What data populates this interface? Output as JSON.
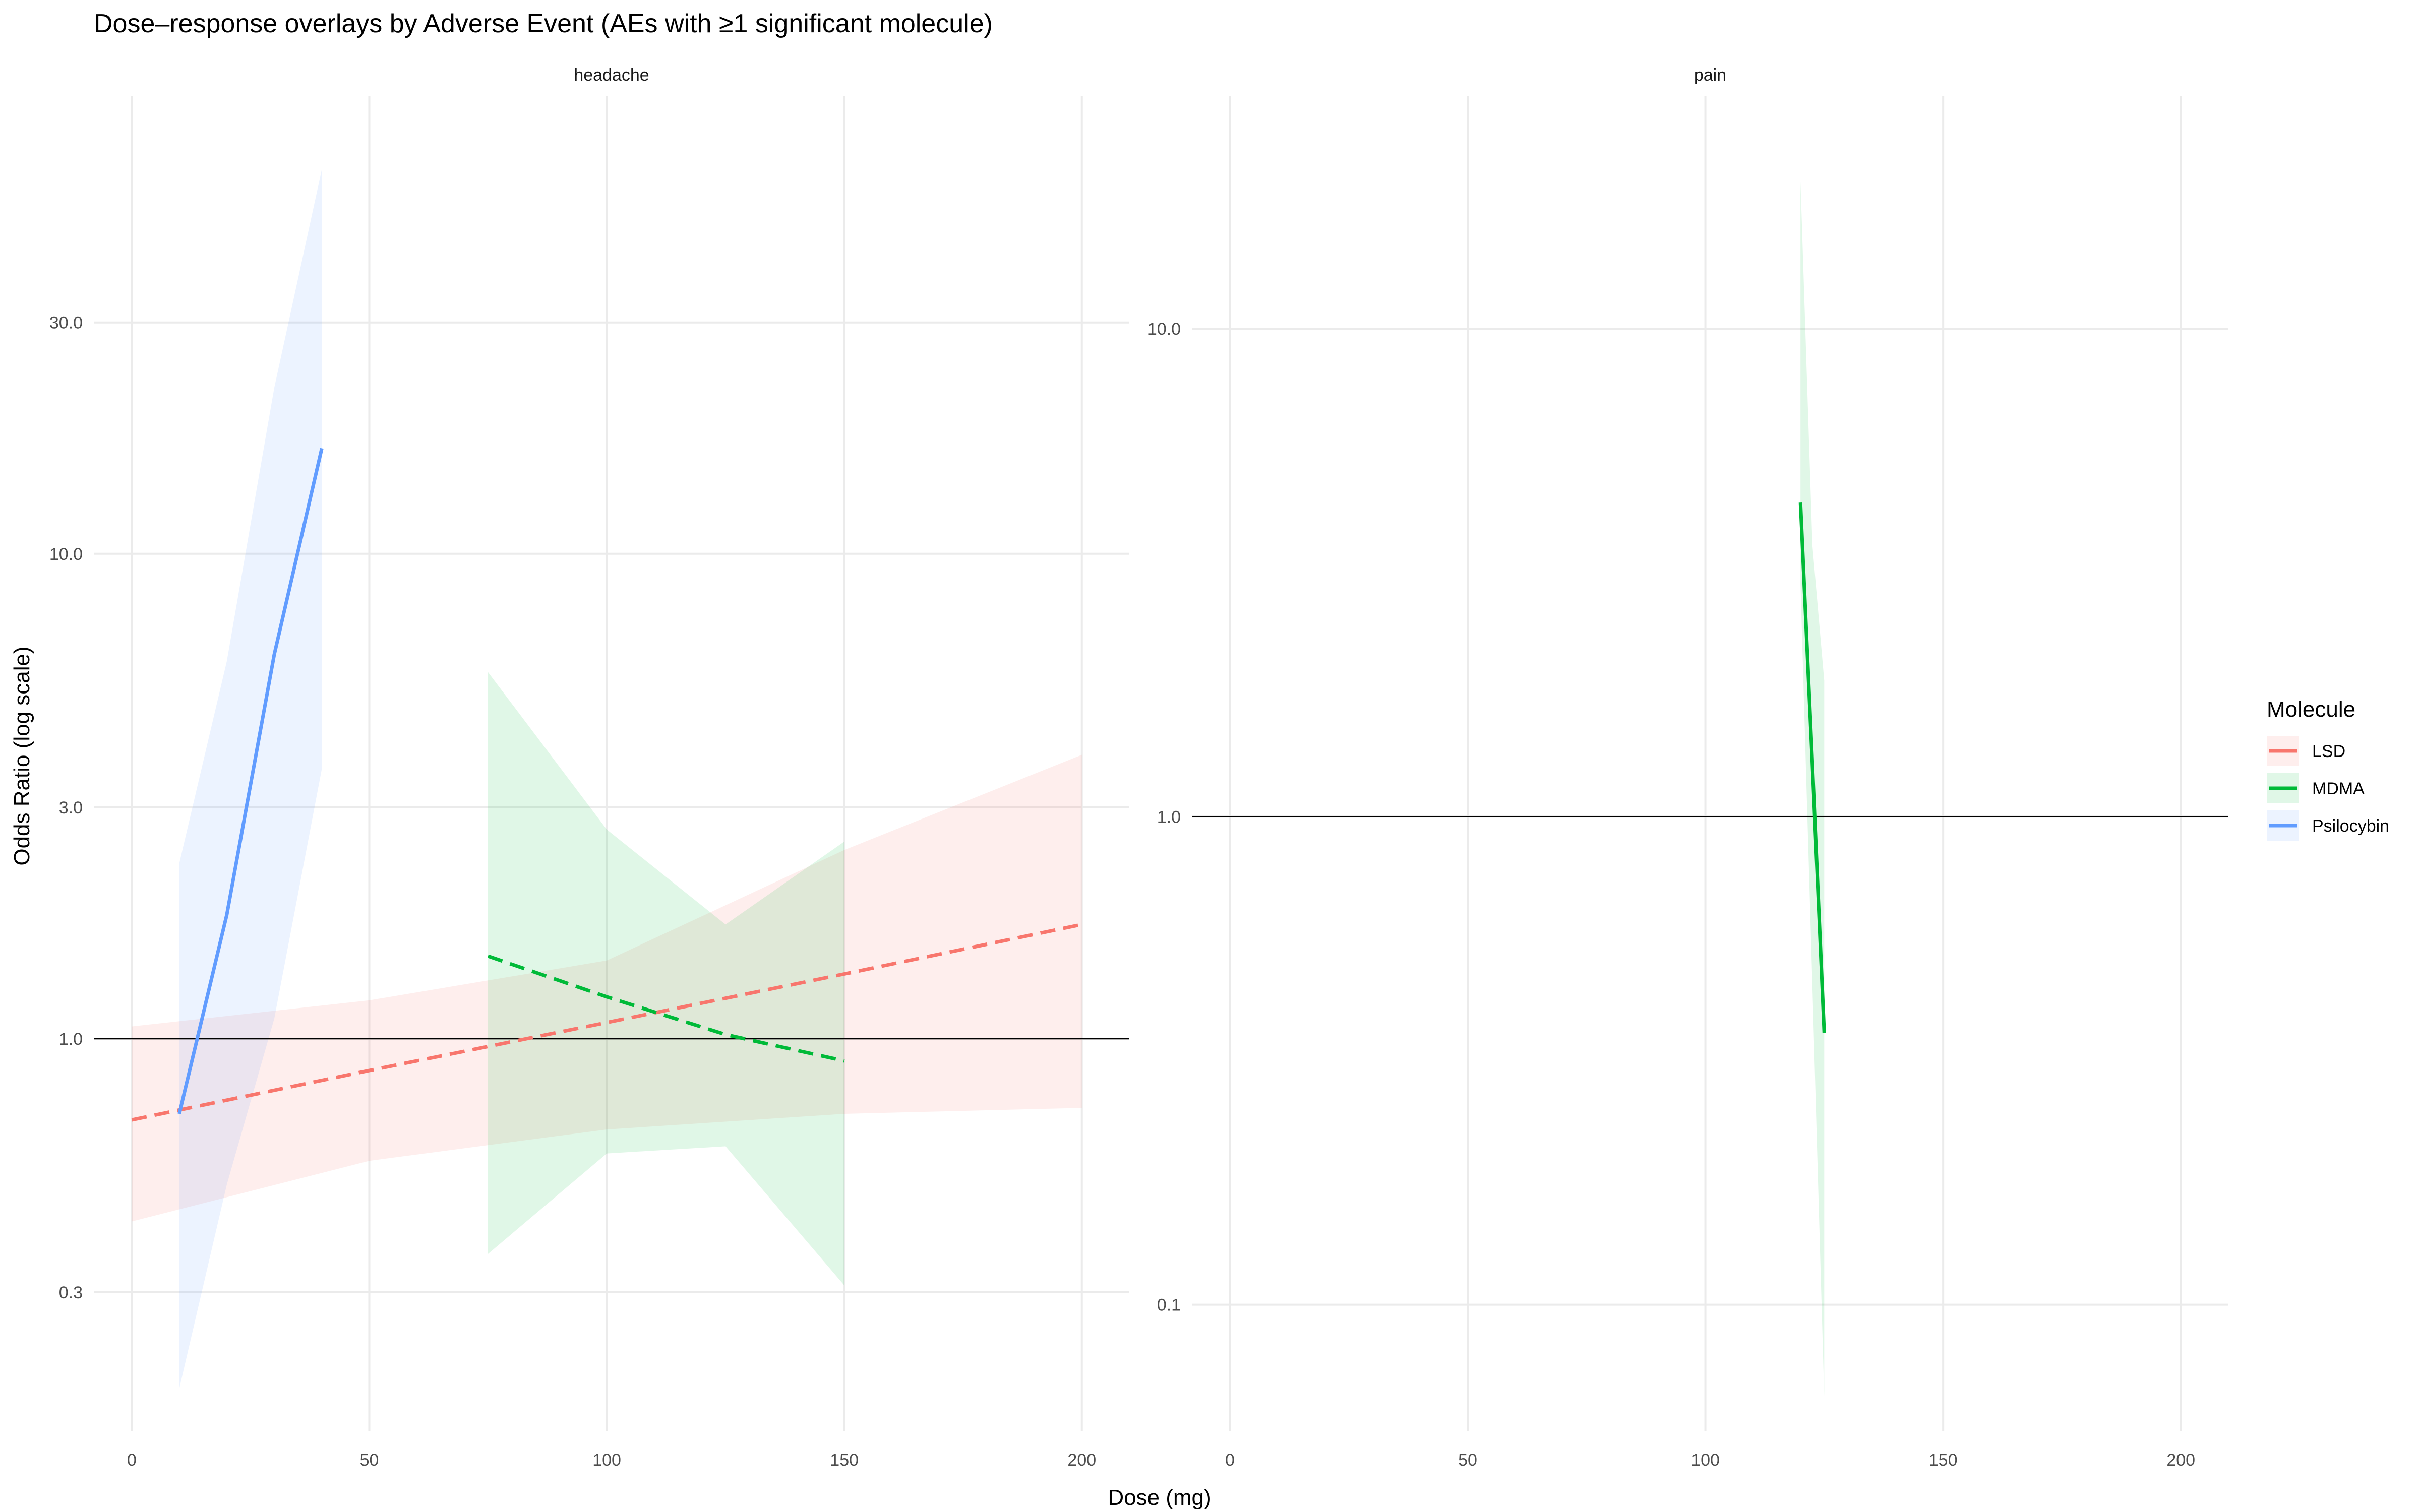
{
  "chart_data": {
    "type": "line",
    "title": "Dose–response overlays by Adverse Event (AEs with ≥1 significant molecule)",
    "xlabel": "Dose (mg)",
    "ylabel": "Odds Ratio (log scale)",
    "y_scale": "log",
    "grid": true,
    "legend": {
      "title": "Molecule",
      "placement": "right",
      "entries": [
        {
          "name": "LSD",
          "color": "#F8766D"
        },
        {
          "name": "MDMA",
          "color": "#00BA38"
        },
        {
          "name": "Psilocybin",
          "color": "#619CFF"
        }
      ]
    },
    "reference_line_y": 1.0,
    "panels": [
      {
        "facet": "headache",
        "xlim": [
          -8,
          210
        ],
        "ylim": [
          0.155,
          88
        ],
        "x_ticks": [
          0,
          50,
          100,
          150,
          200
        ],
        "x_tick_labels": [
          "0",
          "50",
          "100",
          "150",
          "200"
        ],
        "y_ticks": [
          0.3,
          1.0,
          3.0,
          10.0,
          30.0
        ],
        "y_tick_labels": [
          "0.3",
          "1.0",
          "3.0",
          "10.0",
          "30.0"
        ],
        "series": [
          {
            "name": "LSD",
            "color": "#F8766D",
            "dashed": true,
            "x": [
              0,
              50,
              100,
              150,
              200
            ],
            "y": [
              0.68,
              0.86,
              1.08,
              1.36,
              1.72
            ],
            "lower": [
              0.42,
              0.56,
              0.65,
              0.7,
              0.72
            ],
            "upper": [
              1.06,
              1.2,
              1.45,
              2.45,
              3.85
            ]
          },
          {
            "name": "MDMA",
            "color": "#00BA38",
            "dashed": true,
            "x": [
              75,
              100,
              125,
              150
            ],
            "y": [
              1.48,
              1.22,
              1.02,
              0.9
            ],
            "lower": [
              0.36,
              0.58,
              0.6,
              0.31
            ],
            "upper": [
              5.7,
              2.7,
              1.72,
              2.55
            ]
          },
          {
            "name": "Psilocybin",
            "color": "#619CFF",
            "dashed": false,
            "x": [
              10,
              20,
              30,
              40
            ],
            "y": [
              0.7,
              1.8,
              6.2,
              16.5
            ],
            "lower": [
              0.19,
              0.5,
              1.1,
              3.6
            ],
            "upper": [
              2.3,
              6.0,
              22.0,
              62.0
            ]
          }
        ]
      },
      {
        "facet": "pain",
        "xlim": [
          -8,
          210
        ],
        "ylim": [
          0.055,
          30
        ],
        "x_ticks": [
          0,
          50,
          100,
          150,
          200
        ],
        "x_tick_labels": [
          "0",
          "50",
          "100",
          "150",
          "200"
        ],
        "y_ticks": [
          0.1,
          1.0,
          10.0
        ],
        "y_tick_labels": [
          "0.1",
          "1.0",
          "10.0"
        ],
        "series": [
          {
            "name": "MDMA",
            "color": "#00BA38",
            "dashed": false,
            "x": [
              120,
              122.5,
              125
            ],
            "y": [
              4.4,
              1.28,
              0.36
            ],
            "lower": [
              3.0,
              0.45,
              0.065
            ],
            "upper": [
              20.0,
              3.6,
              1.9
            ]
          }
        ]
      }
    ]
  }
}
